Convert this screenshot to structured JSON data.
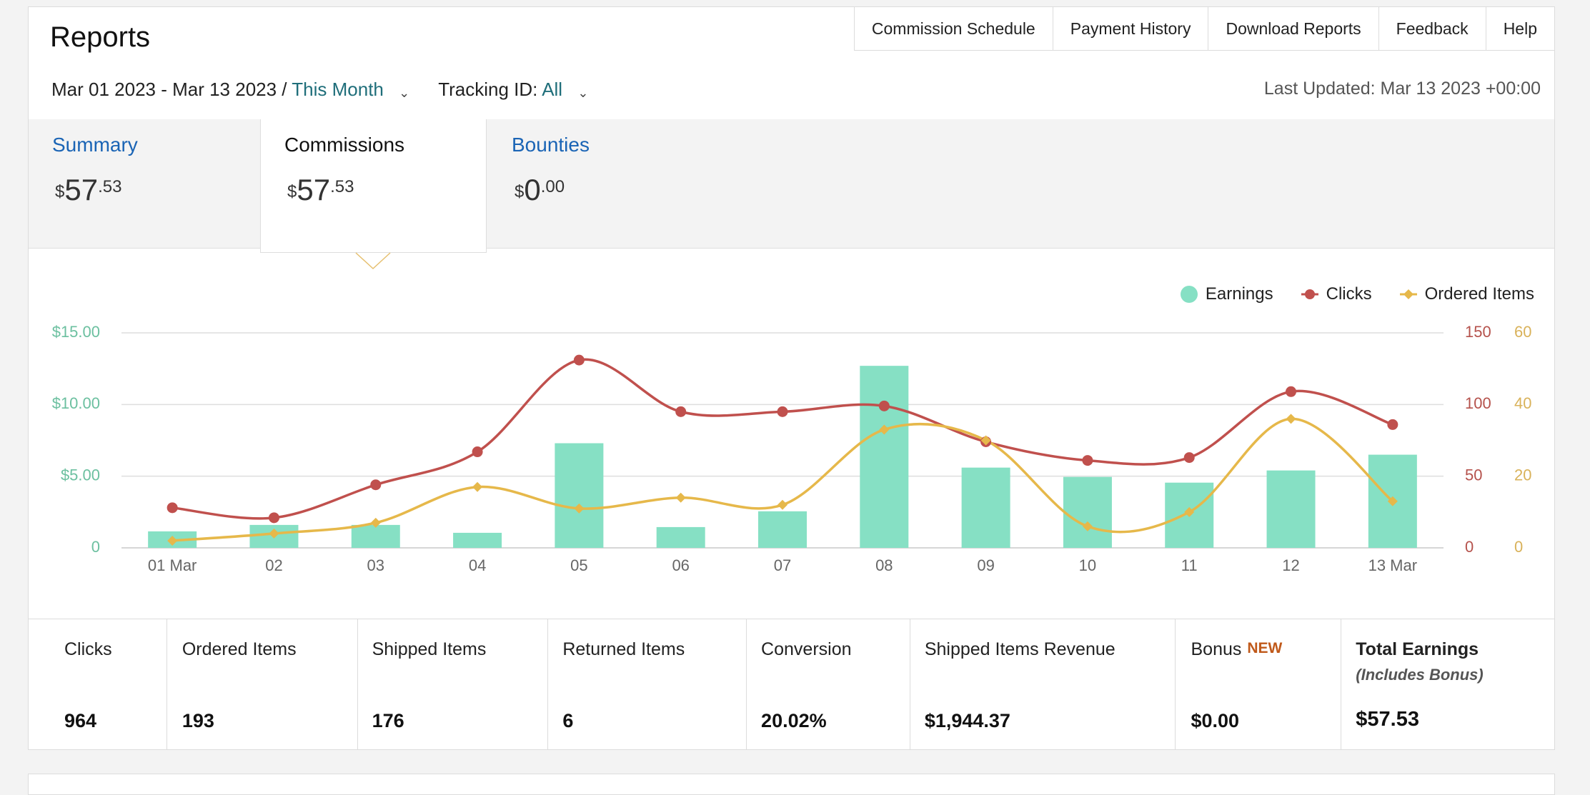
{
  "header": {
    "title": "Reports",
    "nav": [
      "Commission Schedule",
      "Payment History",
      "Download Reports",
      "Feedback",
      "Help"
    ]
  },
  "filters": {
    "date_range": "Mar 01 2023 - Mar 13 2023 / ",
    "period": "This Month",
    "tracking_label": "Tracking ID: ",
    "tracking_value": "All",
    "last_updated": "Last Updated: Mar 13 2023 +00:00"
  },
  "tabs": [
    {
      "label": "Summary",
      "currency": "$",
      "whole": "57",
      "cents": ".53"
    },
    {
      "label": "Commissions",
      "currency": "$",
      "whole": "57",
      "cents": ".53"
    },
    {
      "label": "Bounties",
      "currency": "$",
      "whole": "0",
      "cents": ".00"
    }
  ],
  "legend": [
    "Earnings",
    "Clicks",
    "Ordered Items"
  ],
  "colors": {
    "earnings": "#86e0c4",
    "clicks": "#c0504d",
    "ordered": "#e6b84a",
    "earnings_axis": "#6cc0a0",
    "clicks_axis": "#b5524c",
    "ordered_axis": "#d9b25a"
  },
  "chart_data": {
    "type": "bar",
    "categories": [
      "01 Mar",
      "02",
      "03",
      "04",
      "05",
      "06",
      "07",
      "08",
      "09",
      "10",
      "11",
      "12",
      "13 Mar"
    ],
    "series": [
      {
        "name": "Earnings",
        "type": "bar",
        "axis": "left",
        "values": [
          1.15,
          1.6,
          1.6,
          1.05,
          7.3,
          1.45,
          2.55,
          12.7,
          5.6,
          4.95,
          4.55,
          5.4,
          6.5
        ]
      },
      {
        "name": "Clicks",
        "type": "line",
        "axis": "right1",
        "values": [
          28,
          21,
          44,
          67,
          131,
          95,
          95,
          99,
          74,
          61,
          63,
          109,
          86
        ]
      },
      {
        "name": "Ordered Items",
        "type": "line",
        "axis": "right2",
        "values": [
          2,
          4,
          7,
          17,
          11,
          14,
          12,
          33,
          30,
          6,
          10,
          36,
          13
        ]
      }
    ],
    "y_left": {
      "ticks": [
        "$15.00",
        "$10.00",
        "$5.00",
        "0"
      ],
      "range": [
        0,
        15
      ]
    },
    "y_right1": {
      "ticks": [
        "150",
        "100",
        "50",
        "0"
      ],
      "range": [
        0,
        150
      ]
    },
    "y_right2": {
      "ticks": [
        "60",
        "40",
        "20",
        "0"
      ],
      "range": [
        0,
        60
      ]
    },
    "grid": true,
    "legend_position": "top-right"
  },
  "metrics": [
    {
      "label": "Clicks",
      "value": "964"
    },
    {
      "label": "Ordered Items",
      "value": "193"
    },
    {
      "label": "Shipped Items",
      "value": "176"
    },
    {
      "label": "Returned Items",
      "value": "6"
    },
    {
      "label": "Conversion",
      "value": "20.02%"
    },
    {
      "label": "Shipped Items Revenue",
      "value": "$1,944.37"
    },
    {
      "label": "Bonus",
      "badge": "NEW",
      "value": "$0.00"
    },
    {
      "label": "Total Earnings",
      "note": "(Includes Bonus)",
      "value": "$57.53"
    }
  ]
}
